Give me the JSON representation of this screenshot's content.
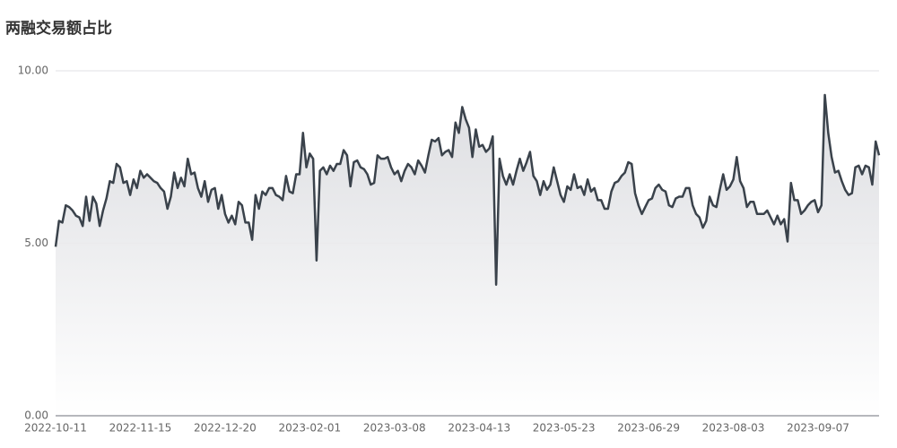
{
  "chart_data": {
    "type": "line",
    "title": "两融交易额占比",
    "categories": [
      "2022-10-11",
      null,
      null,
      null,
      null,
      null,
      null,
      null,
      null,
      null,
      null,
      null,
      null,
      null,
      null,
      null,
      null,
      null,
      null,
      null,
      null,
      null,
      null,
      null,
      null,
      "2022-11-15",
      null,
      null,
      null,
      null,
      null,
      null,
      null,
      null,
      null,
      null,
      null,
      null,
      null,
      null,
      null,
      null,
      null,
      null,
      null,
      null,
      null,
      null,
      null,
      null,
      "2022-12-20",
      null,
      null,
      null,
      null,
      null,
      null,
      null,
      null,
      null,
      null,
      null,
      null,
      null,
      null,
      null,
      null,
      null,
      null,
      null,
      null,
      null,
      null,
      null,
      null,
      "2023-02-01",
      null,
      null,
      null,
      null,
      null,
      null,
      null,
      null,
      null,
      null,
      null,
      null,
      null,
      null,
      null,
      null,
      null,
      null,
      null,
      null,
      null,
      null,
      null,
      null,
      "2023-03-08",
      null,
      null,
      null,
      null,
      null,
      null,
      null,
      null,
      null,
      null,
      null,
      null,
      null,
      null,
      null,
      null,
      null,
      null,
      null,
      null,
      null,
      null,
      null,
      null,
      "2023-04-13",
      null,
      null,
      null,
      null,
      null,
      null,
      null,
      null,
      null,
      null,
      null,
      null,
      null,
      null,
      null,
      null,
      null,
      null,
      null,
      null,
      null,
      null,
      null,
      null,
      "2023-05-23",
      null,
      null,
      null,
      null,
      null,
      null,
      null,
      null,
      null,
      null,
      null,
      null,
      null,
      null,
      null,
      null,
      null,
      null,
      null,
      null,
      null,
      null,
      null,
      null,
      "2023-06-29",
      null,
      null,
      null,
      null,
      null,
      null,
      null,
      null,
      null,
      null,
      null,
      null,
      null,
      null,
      null,
      null,
      null,
      null,
      null,
      null,
      null,
      null,
      null,
      null,
      "2023-08-03",
      null,
      null,
      null,
      null,
      null,
      null,
      null,
      null,
      null,
      null,
      null,
      null,
      null,
      null,
      null,
      null,
      null,
      null,
      null,
      null,
      null,
      null,
      null,
      null,
      "2023-09-07",
      null,
      null,
      null,
      null,
      null,
      null,
      null,
      null,
      null,
      null,
      null,
      null,
      null,
      null,
      null,
      null,
      null,
      null
    ],
    "values": [
      4.9,
      5.65,
      5.6,
      6.1,
      6.05,
      5.95,
      5.8,
      5.75,
      5.5,
      6.35,
      5.65,
      6.35,
      6.15,
      5.5,
      5.95,
      6.3,
      6.8,
      6.75,
      7.3,
      7.2,
      6.75,
      6.8,
      6.4,
      6.85,
      6.6,
      7.1,
      6.9,
      7.0,
      6.9,
      6.8,
      6.75,
      6.6,
      6.5,
      6.0,
      6.35,
      7.05,
      6.6,
      6.9,
      6.65,
      7.45,
      7.0,
      7.05,
      6.6,
      6.35,
      6.8,
      6.2,
      6.55,
      6.6,
      6.0,
      6.4,
      5.85,
      5.6,
      5.8,
      5.55,
      6.2,
      6.1,
      5.6,
      5.6,
      5.1,
      6.4,
      6.0,
      6.5,
      6.4,
      6.6,
      6.6,
      6.4,
      6.35,
      6.25,
      6.95,
      6.5,
      6.45,
      7.0,
      7.0,
      8.2,
      7.2,
      7.6,
      7.45,
      4.5,
      7.1,
      7.2,
      7.0,
      7.25,
      7.1,
      7.3,
      7.3,
      7.7,
      7.55,
      6.65,
      7.35,
      7.4,
      7.2,
      7.15,
      7.0,
      6.7,
      6.75,
      7.55,
      7.45,
      7.45,
      7.5,
      7.2,
      7.0,
      7.1,
      6.8,
      7.1,
      7.3,
      7.2,
      7.0,
      7.4,
      7.25,
      7.05,
      7.55,
      8.0,
      7.95,
      8.05,
      7.55,
      7.65,
      7.7,
      7.5,
      8.5,
      8.2,
      8.95,
      8.6,
      8.35,
      7.5,
      8.3,
      7.8,
      7.85,
      7.65,
      7.75,
      8.1,
      3.8,
      7.45,
      6.95,
      6.7,
      7.0,
      6.7,
      7.1,
      7.45,
      7.1,
      7.35,
      7.65,
      6.95,
      6.8,
      6.4,
      6.8,
      6.55,
      6.7,
      7.2,
      6.8,
      6.4,
      6.2,
      6.65,
      6.55,
      7.0,
      6.6,
      6.65,
      6.4,
      6.85,
      6.5,
      6.6,
      6.25,
      6.25,
      6.0,
      6.0,
      6.5,
      6.75,
      6.8,
      6.95,
      7.05,
      7.35,
      7.3,
      6.45,
      6.1,
      5.85,
      6.05,
      6.25,
      6.3,
      6.6,
      6.7,
      6.55,
      6.5,
      6.1,
      6.05,
      6.3,
      6.35,
      6.35,
      6.6,
      6.6,
      6.1,
      5.85,
      5.75,
      5.45,
      5.65,
      6.35,
      6.1,
      6.05,
      6.55,
      7.0,
      6.55,
      6.65,
      6.85,
      7.5,
      6.8,
      6.6,
      6.05,
      6.2,
      6.2,
      5.85,
      5.85,
      5.85,
      5.95,
      5.75,
      5.55,
      5.8,
      5.55,
      5.7,
      5.05,
      6.75,
      6.25,
      6.25,
      5.85,
      5.95,
      6.1,
      6.2,
      6.25,
      5.9,
      6.1,
      9.3,
      8.2,
      7.5,
      7.05,
      7.1,
      6.8,
      6.55,
      6.4,
      6.45,
      7.2,
      7.25,
      7.0,
      7.25,
      7.2,
      6.7,
      7.95,
      7.55
    ],
    "color": "#3a424b",
    "ylim": [
      0,
      10
    ],
    "yticks": [
      {
        "value": 0,
        "label": "0.00"
      },
      {
        "value": 5,
        "label": "5.00"
      },
      {
        "value": 10,
        "label": "10.00"
      }
    ],
    "grid": true
  }
}
